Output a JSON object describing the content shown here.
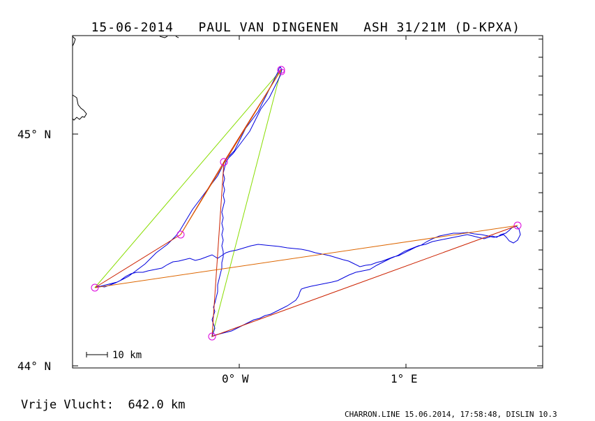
{
  "header": {
    "date": "15-06-2014",
    "pilot": "PAUL VAN DINGENEN",
    "glider": "ASH 31/21M (D-KPXA)"
  },
  "axes": {
    "lat_labels": [
      "45° N",
      "44° N"
    ],
    "lon_labels": [
      "0° W",
      "1° E"
    ]
  },
  "scale_bar": {
    "label": "10 km"
  },
  "footer": {
    "distance_label": "Vrije Vlucht:",
    "distance_value": "642.0 km",
    "credit": "CHARRON.LINE 15.06.2014, 17:58:48, DISLIN 10.3"
  },
  "colors": {
    "track": "#0000dd",
    "legs": "#cc2200",
    "triangle": "#88dd00",
    "turnpoint": "#dd00dd",
    "legs_orange": "#dd6600"
  }
}
